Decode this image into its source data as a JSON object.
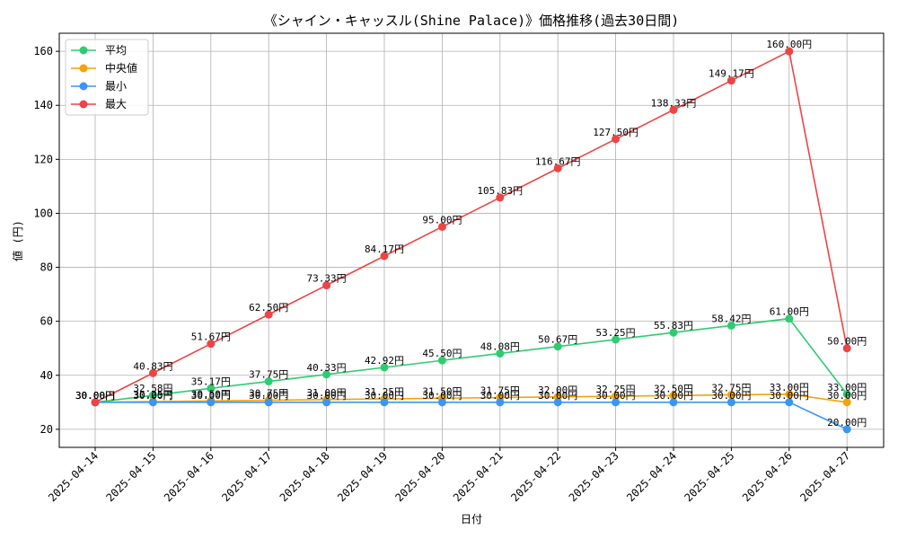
{
  "chart_data": {
    "type": "line",
    "title": "《シャイン・キャッスル(Shine Palace)》価格推移(過去30日間)",
    "xlabel": "日付",
    "ylabel": "値 (円)",
    "categories": [
      "2025-04-14",
      "2025-04-15",
      "2025-04-16",
      "2025-04-17",
      "2025-04-18",
      "2025-04-19",
      "2025-04-20",
      "2025-04-21",
      "2025-04-22",
      "2025-04-23",
      "2025-04-24",
      "2025-04-25",
      "2025-04-26",
      "2025-04-27"
    ],
    "ylim": [
      13.3,
      166.7
    ],
    "yticks": [
      20,
      40,
      60,
      80,
      100,
      120,
      140,
      160
    ],
    "grid": true,
    "legend_position": "top-left",
    "value_suffix": "円",
    "series": [
      {
        "name": "平均",
        "color": "#2ecc71",
        "values": [
          30.0,
          32.58,
          35.17,
          37.75,
          40.33,
          42.92,
          45.5,
          48.08,
          50.67,
          53.25,
          55.83,
          58.42,
          61.0,
          33.0
        ]
      },
      {
        "name": "中央値",
        "color": "#f5a30a",
        "values": [
          30.0,
          30.25,
          30.5,
          30.75,
          31.0,
          31.25,
          31.5,
          31.75,
          32.0,
          32.25,
          32.5,
          32.75,
          33.0,
          30.0
        ]
      },
      {
        "name": "最小",
        "color": "#3b96f3",
        "values": [
          30.0,
          30.0,
          30.0,
          30.0,
          30.0,
          30.0,
          30.0,
          30.0,
          30.0,
          30.0,
          30.0,
          30.0,
          30.0,
          20.0
        ]
      },
      {
        "name": "最大",
        "color": "#ee4444",
        "values": [
          30.0,
          40.83,
          51.67,
          62.5,
          73.33,
          84.17,
          95.0,
          105.83,
          116.67,
          127.5,
          138.33,
          149.17,
          160.0,
          50.0
        ]
      }
    ]
  }
}
